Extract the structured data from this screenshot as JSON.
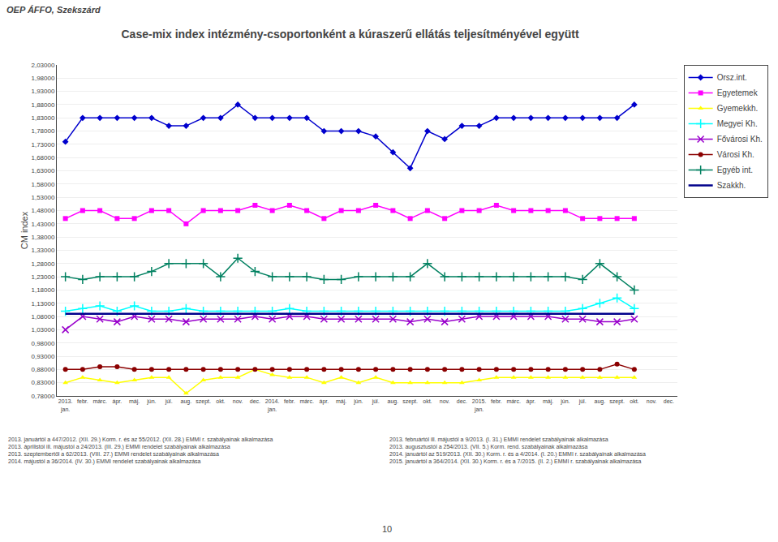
{
  "chart_data": {
    "type": "line",
    "title": "Case-mix index intézmény-csoportonként a kúraszerű ellátás teljesítményével együtt",
    "ylabel": "CM index",
    "annotations": [
      "OEP ÁFFO, Szekszárd",
      "2013. januártól a 447/2012. (XII. 29.) Korm. r. és az 55/2012. (XII. 28.) EMMI r. szabályainak alkalmazása\n2013. áprilistól ill. májustól a 24/2013. (III. 29.) EMMI rendelet szabályainak alkalmazása\n2013. szeptembertől a 62/2013. (VIII. 27.) EMMI rendelet szabályainak alkalmazása\n2014. májustól a 36/2014. (IV. 30.) EMMI rendelet szabályainak alkalmazása",
      "2013. februártól ill. májustól a 9/2013. (I. 31.) EMMI rendelet szabályainak alkalmazása\n2013. augusztustól a 254/2013. (VII. 5.) Korm. rend. szabályainak alkalmazása\n2014. januártól az 519/2013. (XII. 30.) Korm. r. és a 4/2014. (I. 20.) EMMI r. szabályainak alkalmazása\n2015. januártól a 364/2014. (XII. 30.) Korm. r. és a 7/2015. (II. 2.) EMMI r. szabályainak alkalmazása",
      "10"
    ],
    "categories": [
      "2013.\njan.",
      "febr.",
      "márc.",
      "ápr.",
      "máj.",
      "jún.",
      "júl.",
      "aug.",
      "szept.",
      "okt.",
      "nov.",
      "dec.",
      "2014.\njan.",
      "febr.",
      "márc.",
      "ápr.",
      "máj.",
      "jún.",
      "júl.",
      "aug.",
      "szept.",
      "okt.",
      "nov.",
      "dec.",
      "2015.\njan.",
      "febr.",
      "márc.",
      "ápr.",
      "máj.",
      "jún.",
      "júl.",
      "aug.",
      "szept.",
      "okt.",
      "nov.",
      "dec."
    ],
    "ylim": [
      0.78,
      2.03
    ],
    "yticks": [
      {
        "value": 0.78,
        "label": "0,78000"
      },
      {
        "value": 0.83,
        "label": "0,83000"
      },
      {
        "value": 0.88,
        "label": "0,88000"
      },
      {
        "value": 0.93,
        "label": "0,93000"
      },
      {
        "value": 0.98,
        "label": "0,98000"
      },
      {
        "value": 1.03,
        "label": "1,03000"
      },
      {
        "value": 1.08,
        "label": "1,08000"
      },
      {
        "value": 1.13,
        "label": "1,13000"
      },
      {
        "value": 1.18,
        "label": "1,18000"
      },
      {
        "value": 1.23,
        "label": "1,23000"
      },
      {
        "value": 1.28,
        "label": "1,28000"
      },
      {
        "value": 1.33,
        "label": "1,33000"
      },
      {
        "value": 1.38,
        "label": "1,38000"
      },
      {
        "value": 1.43,
        "label": "1,43000"
      },
      {
        "value": 1.48,
        "label": "1,48000"
      },
      {
        "value": 1.53,
        "label": "1,53000"
      },
      {
        "value": 1.58,
        "label": "1,58000"
      },
      {
        "value": 1.63,
        "label": "1,63000"
      },
      {
        "value": 1.68,
        "label": "1,68000"
      },
      {
        "value": 1.73,
        "label": "1,73000"
      },
      {
        "value": 1.78,
        "label": "1,78000"
      },
      {
        "value": 1.83,
        "label": "1,83000"
      },
      {
        "value": 1.88,
        "label": "1,88000"
      },
      {
        "value": 1.93,
        "label": "1,93000"
      },
      {
        "value": 1.98,
        "label": "1,98000"
      },
      {
        "value": 2.03,
        "label": "2,03000"
      }
    ],
    "grid": true,
    "legend": "top-right",
    "series": [
      {
        "name": "Orsz.int.",
        "color": "#0000CD",
        "marker": "diamond",
        "values": [
          1.74,
          1.83,
          1.83,
          1.83,
          1.83,
          1.83,
          1.8,
          1.8,
          1.83,
          1.83,
          1.88,
          1.83,
          1.83,
          1.83,
          1.83,
          1.78,
          1.78,
          1.78,
          1.76,
          1.7,
          1.64,
          1.78,
          1.75,
          1.8,
          1.8,
          1.83,
          1.83,
          1.83,
          1.83,
          1.83,
          1.83,
          1.83,
          1.83,
          1.88,
          null,
          null
        ]
      },
      {
        "name": "Egyetemek",
        "color": "#FF00FF",
        "marker": "square",
        "values": [
          1.45,
          1.48,
          1.48,
          1.45,
          1.45,
          1.48,
          1.48,
          1.43,
          1.48,
          1.48,
          1.48,
          1.5,
          1.48,
          1.5,
          1.48,
          1.45,
          1.48,
          1.48,
          1.5,
          1.48,
          1.45,
          1.48,
          1.45,
          1.48,
          1.48,
          1.5,
          1.48,
          1.48,
          1.48,
          1.48,
          1.45,
          1.45,
          1.45,
          1.45,
          null,
          null
        ]
      },
      {
        "name": "Gyemekkh.",
        "color": "#FFFF00",
        "marker": "triangle-up",
        "values": [
          0.83,
          0.85,
          0.84,
          0.83,
          0.84,
          0.85,
          0.85,
          0.79,
          0.84,
          0.85,
          0.85,
          0.88,
          0.86,
          0.85,
          0.85,
          0.83,
          0.85,
          0.83,
          0.85,
          0.83,
          0.83,
          0.83,
          0.83,
          0.83,
          0.84,
          0.85,
          0.85,
          0.85,
          0.85,
          0.85,
          0.85,
          0.85,
          0.85,
          0.85,
          null,
          null
        ]
      },
      {
        "name": "Megyei Kh.",
        "color": "#00FFFF",
        "marker": "cross",
        "values": [
          1.1,
          1.11,
          1.12,
          1.1,
          1.12,
          1.1,
          1.1,
          1.11,
          1.1,
          1.1,
          1.1,
          1.1,
          1.1,
          1.11,
          1.1,
          1.1,
          1.1,
          1.1,
          1.1,
          1.1,
          1.1,
          1.1,
          1.1,
          1.1,
          1.1,
          1.1,
          1.1,
          1.1,
          1.1,
          1.1,
          1.11,
          1.13,
          1.15,
          1.11,
          null,
          null
        ]
      },
      {
        "name": "Fővárosi Kh.",
        "color": "#9900CC",
        "marker": "x",
        "values": [
          1.03,
          1.08,
          1.07,
          1.06,
          1.08,
          1.07,
          1.07,
          1.06,
          1.07,
          1.07,
          1.07,
          1.08,
          1.07,
          1.08,
          1.08,
          1.07,
          1.07,
          1.07,
          1.07,
          1.07,
          1.06,
          1.07,
          1.06,
          1.07,
          1.08,
          1.08,
          1.08,
          1.08,
          1.08,
          1.07,
          1.07,
          1.06,
          1.06,
          1.07,
          null,
          null
        ]
      },
      {
        "name": "Városi Kh.",
        "color": "#8B0000",
        "marker": "circle",
        "values": [
          0.88,
          0.88,
          0.89,
          0.89,
          0.88,
          0.88,
          0.88,
          0.88,
          0.88,
          0.88,
          0.88,
          0.88,
          0.88,
          0.88,
          0.88,
          0.88,
          0.88,
          0.88,
          0.88,
          0.88,
          0.88,
          0.88,
          0.88,
          0.88,
          0.88,
          0.88,
          0.88,
          0.88,
          0.88,
          0.88,
          0.88,
          0.88,
          0.9,
          0.88,
          null,
          null
        ]
      },
      {
        "name": "Egyéb int.",
        "color": "#008060",
        "marker": "cross",
        "values": [
          1.23,
          1.22,
          1.23,
          1.23,
          1.23,
          1.25,
          1.28,
          1.28,
          1.28,
          1.23,
          1.3,
          1.25,
          1.23,
          1.23,
          1.23,
          1.22,
          1.22,
          1.23,
          1.23,
          1.23,
          1.23,
          1.28,
          1.23,
          1.23,
          1.23,
          1.23,
          1.23,
          1.23,
          1.23,
          1.23,
          1.22,
          1.28,
          1.23,
          1.18,
          null,
          null
        ]
      },
      {
        "name": "Szakkh.",
        "color": "#00008B",
        "values": [
          1.09,
          1.09,
          1.09,
          1.09,
          1.09,
          1.09,
          1.09,
          1.09,
          1.09,
          1.09,
          1.09,
          1.09,
          1.09,
          1.09,
          1.09,
          1.09,
          1.09,
          1.09,
          1.09,
          1.09,
          1.09,
          1.09,
          1.09,
          1.09,
          1.09,
          1.09,
          1.09,
          1.09,
          1.09,
          1.09,
          1.09,
          1.09,
          1.09,
          1.09,
          null,
          null
        ]
      }
    ]
  }
}
